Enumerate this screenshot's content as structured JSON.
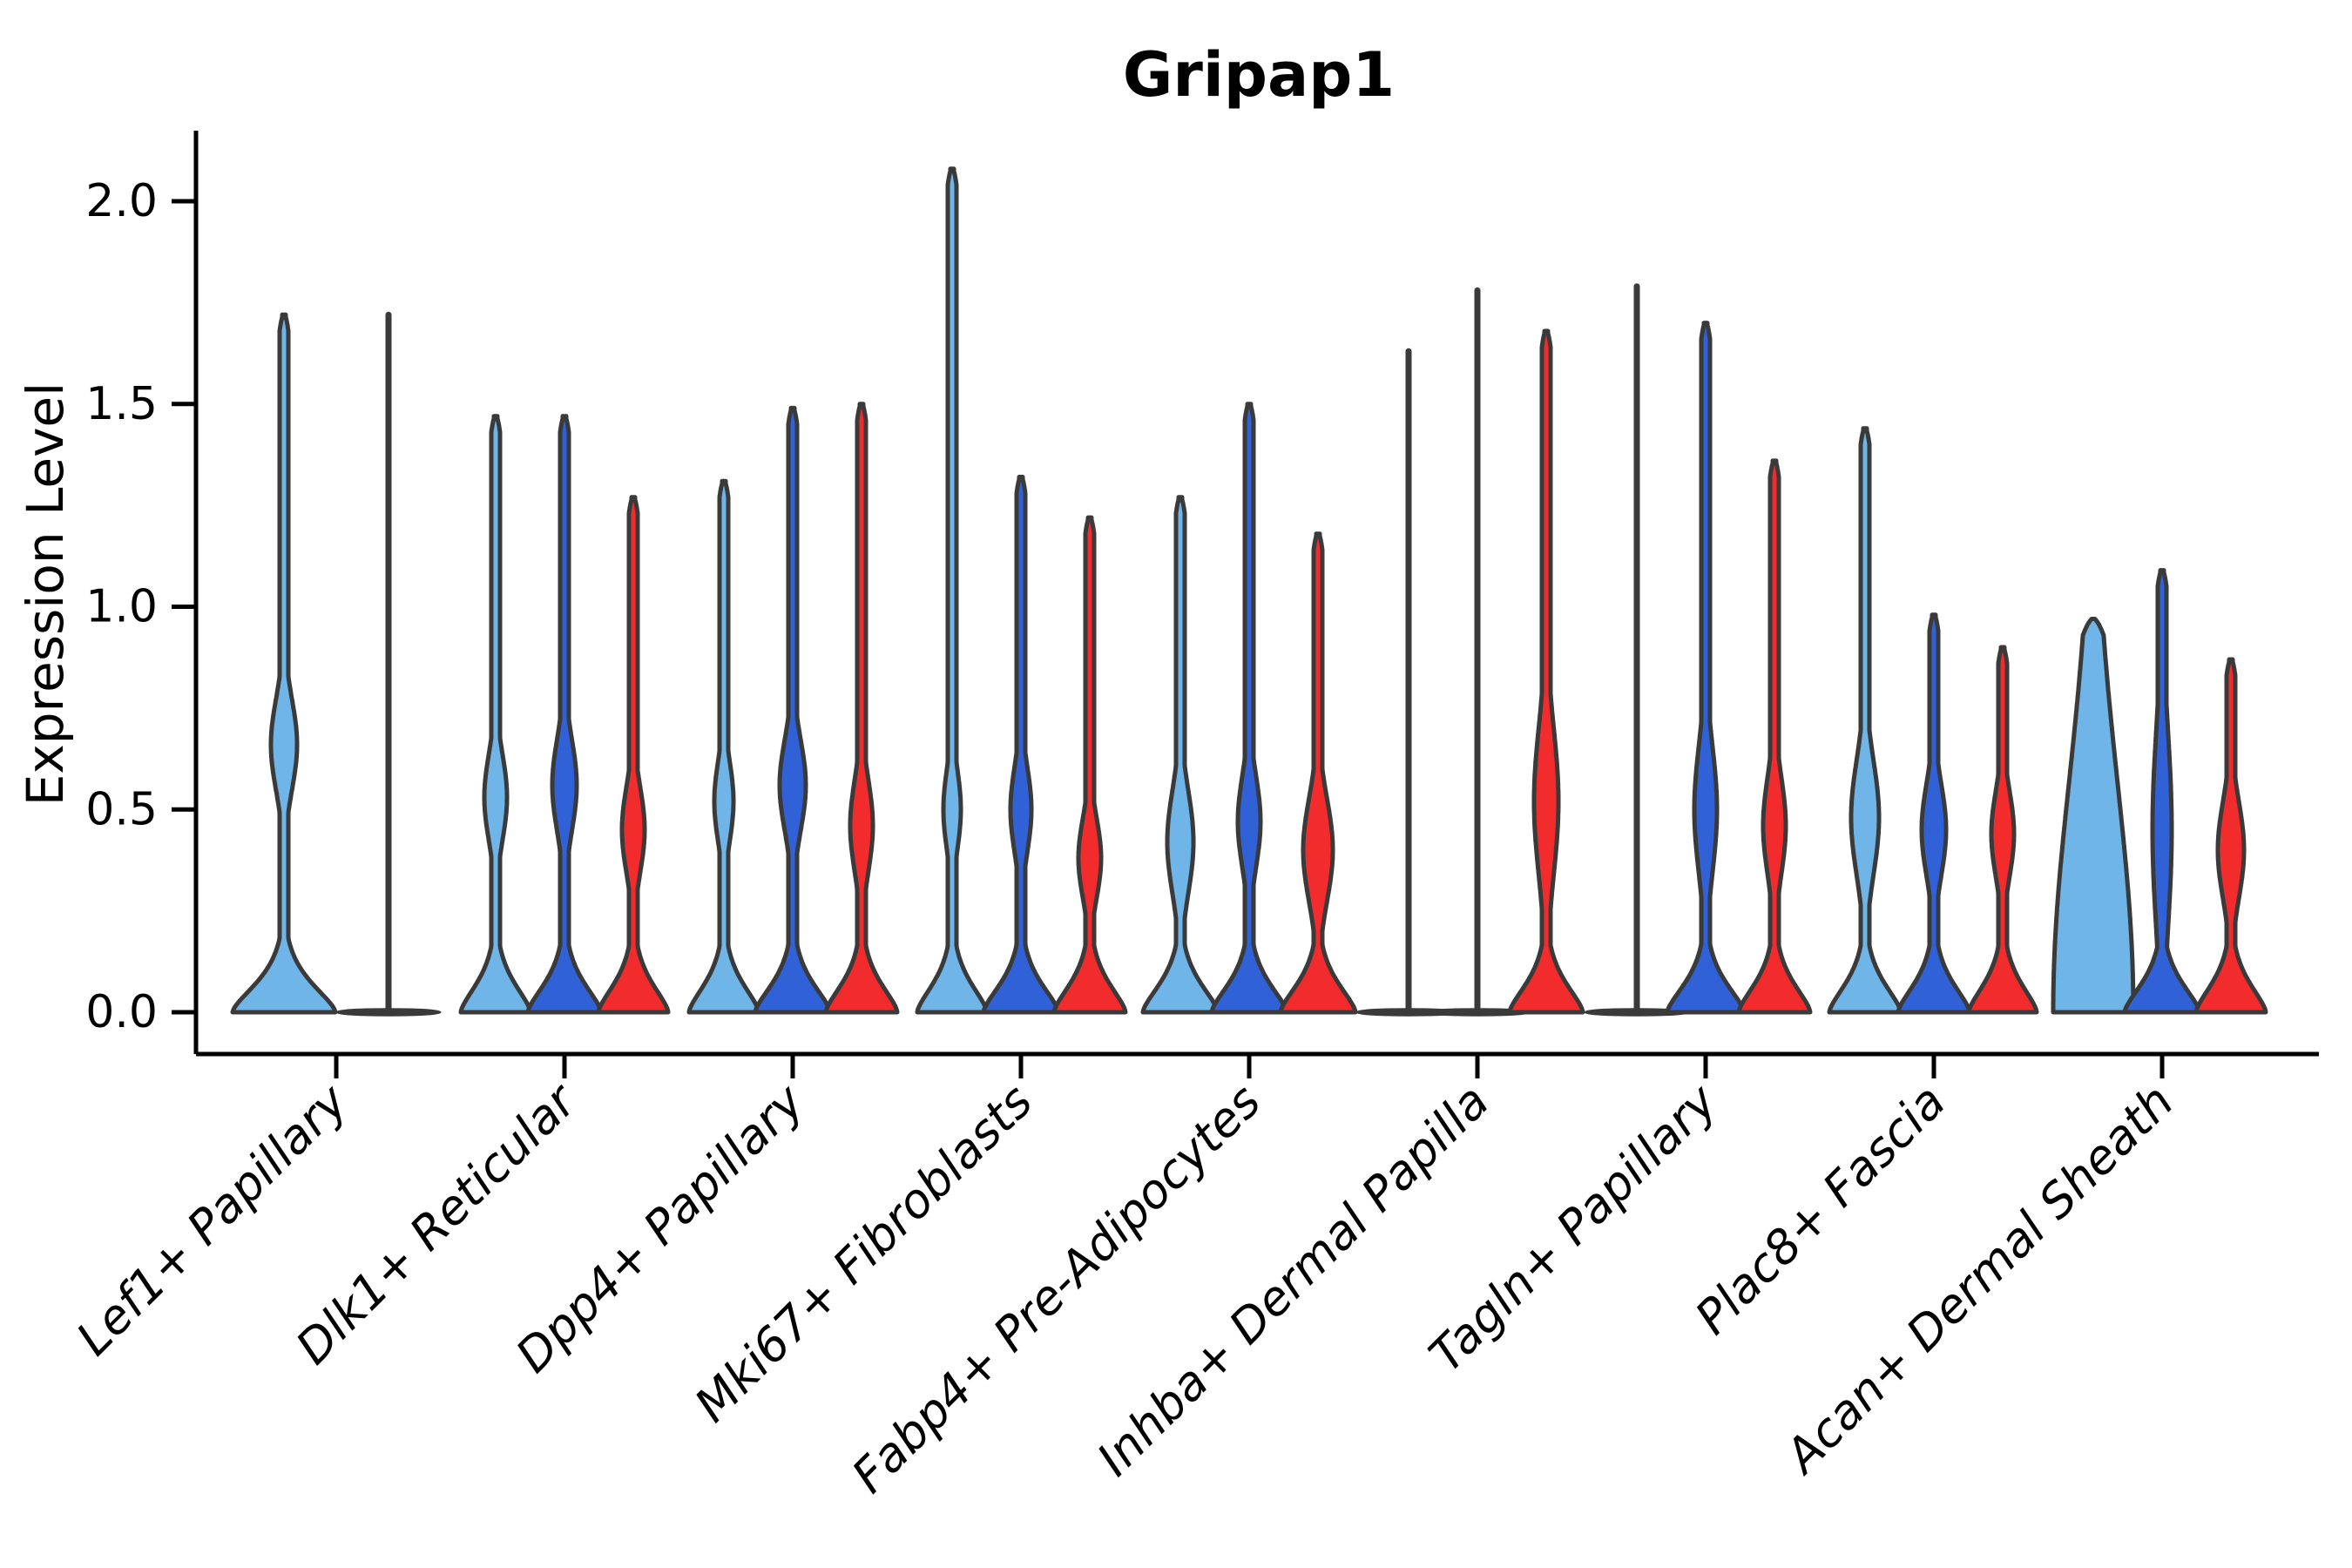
{
  "chart_data": {
    "type": "violin",
    "title": "Gripap1",
    "ylabel": "Expression Level",
    "xlabel": "",
    "ytick_labels": [
      "0.0",
      "0.5",
      "1.0",
      "1.5",
      "2.0"
    ],
    "ytick_values": [
      0.0,
      0.5,
      1.0,
      1.5,
      2.0
    ],
    "ylim": [
      0,
      2.26
    ],
    "grid": false,
    "legend": "none",
    "background": "#ffffff",
    "outline_color": "#3A3A3A",
    "axis_color": "#000000",
    "series_colors": {
      "light_blue": "#6FB5E8",
      "dark_blue": "#3061D6",
      "red": "#F22C2C",
      "indeterminate": "none"
    },
    "categories": [
      "Lef1+ Papillary",
      "Dlk1+ Reticular",
      "Dpp4+ Papillary",
      "Mki67+ Fibroblasts",
      "Fabp4+ Pre-Adipocytes",
      "Inhba+ Dermal Papilla",
      "Tagln+ Papillary",
      "Plac8+ Fascia",
      "Acan+ Dermal Sheath"
    ],
    "groups": [
      {
        "category": "Lef1+ Papillary",
        "violins": [
          {
            "series": "light_blue",
            "style": "normal",
            "max": 1.72,
            "offset": -60,
            "base_hw": 59,
            "bulge_center": 0.66,
            "bulge_hw": 15,
            "bulge_sd": 0.16
          },
          {
            "series": "indeterminate",
            "style": "line",
            "max": 1.72,
            "offset": 60,
            "base_hw": 59
          }
        ]
      },
      {
        "category": "Dlk1+ Reticular",
        "violins": [
          {
            "series": "light_blue",
            "style": "normal",
            "max": 1.47,
            "offset": -79,
            "base_hw": 40,
            "bulge_center": 0.53,
            "bulge_hw": 13,
            "bulge_sd": 0.15
          },
          {
            "series": "dark_blue",
            "style": "normal",
            "max": 1.47,
            "offset": 0,
            "base_hw": 42,
            "bulge_center": 0.56,
            "bulge_hw": 14,
            "bulge_sd": 0.16
          },
          {
            "series": "red",
            "style": "normal",
            "max": 1.27,
            "offset": 79,
            "base_hw": 40,
            "bulge_center": 0.45,
            "bulge_hw": 13,
            "bulge_sd": 0.15
          }
        ]
      },
      {
        "category": "Dpp4+ Papillary",
        "violins": [
          {
            "series": "light_blue",
            "style": "normal",
            "max": 1.31,
            "offset": -79,
            "base_hw": 40,
            "bulge_center": 0.52,
            "bulge_hw": 11,
            "bulge_sd": 0.14
          },
          {
            "series": "dark_blue",
            "style": "normal",
            "max": 1.49,
            "offset": 0,
            "base_hw": 43,
            "bulge_center": 0.56,
            "bulge_hw": 15,
            "bulge_sd": 0.16
          },
          {
            "series": "red",
            "style": "normal",
            "max": 1.5,
            "offset": 79,
            "base_hw": 41,
            "bulge_center": 0.46,
            "bulge_hw": 13,
            "bulge_sd": 0.16
          }
        ]
      },
      {
        "category": "Mki67+ Fibroblasts",
        "violins": [
          {
            "series": "light_blue",
            "style": "normal",
            "max": 2.08,
            "offset": -79,
            "base_hw": 40,
            "bulge_center": 0.5,
            "bulge_hw": 10,
            "bulge_sd": 0.14
          },
          {
            "series": "dark_blue",
            "style": "normal",
            "max": 1.32,
            "offset": 0,
            "base_hw": 43,
            "bulge_center": 0.5,
            "bulge_hw": 12,
            "bulge_sd": 0.15
          },
          {
            "series": "red",
            "style": "normal",
            "max": 1.22,
            "offset": 79,
            "base_hw": 41,
            "bulge_center": 0.38,
            "bulge_hw": 13,
            "bulge_sd": 0.14
          }
        ]
      },
      {
        "category": "Fabp4+ Pre-Adipocytes",
        "violins": [
          {
            "series": "light_blue",
            "style": "normal",
            "max": 1.27,
            "offset": -79,
            "base_hw": 43,
            "bulge_center": 0.42,
            "bulge_hw": 15,
            "bulge_sd": 0.18
          },
          {
            "series": "dark_blue",
            "style": "normal",
            "max": 1.5,
            "offset": 0,
            "base_hw": 43,
            "bulge_center": 0.47,
            "bulge_hw": 13,
            "bulge_sd": 0.16
          },
          {
            "series": "red",
            "style": "normal",
            "max": 1.18,
            "offset": 79,
            "base_hw": 43,
            "bulge_center": 0.4,
            "bulge_hw": 17,
            "bulge_sd": 0.18
          }
        ]
      },
      {
        "category": "Inhba+ Dermal Papilla",
        "violins": [
          {
            "series": "light_blue",
            "style": "line",
            "max": 1.63,
            "offset": -79,
            "base_hw": 59
          },
          {
            "series": "dark_blue",
            "style": "line",
            "max": 1.78,
            "offset": 0,
            "base_hw": 59
          },
          {
            "series": "red",
            "style": "normal",
            "max": 1.68,
            "offset": 79,
            "base_hw": 42,
            "bulge_center": 0.52,
            "bulge_hw": 14,
            "bulge_sd": 0.26
          }
        ]
      },
      {
        "category": "Tagln+ Papillary",
        "violins": [
          {
            "series": "light_blue",
            "style": "line",
            "max": 1.79,
            "offset": -79,
            "base_hw": 59
          },
          {
            "series": "dark_blue",
            "style": "normal",
            "max": 1.7,
            "offset": 0,
            "base_hw": 44,
            "bulge_center": 0.5,
            "bulge_hw": 13,
            "bulge_sd": 0.22
          },
          {
            "series": "red",
            "style": "normal",
            "max": 1.36,
            "offset": 79,
            "base_hw": 41,
            "bulge_center": 0.46,
            "bulge_hw": 13,
            "bulge_sd": 0.17
          }
        ]
      },
      {
        "category": "Plac8+ Fascia",
        "violins": [
          {
            "series": "light_blue",
            "style": "normal",
            "max": 1.44,
            "offset": -79,
            "base_hw": 41,
            "bulge_center": 0.48,
            "bulge_hw": 16,
            "bulge_sd": 0.2
          },
          {
            "series": "dark_blue",
            "style": "normal",
            "max": 0.98,
            "offset": 0,
            "base_hw": 41,
            "bulge_center": 0.45,
            "bulge_hw": 14,
            "bulge_sd": 0.16
          },
          {
            "series": "red",
            "style": "normal",
            "max": 0.9,
            "offset": 79,
            "base_hw": 39,
            "bulge_center": 0.44,
            "bulge_hw": 13,
            "bulge_sd": 0.15
          }
        ]
      },
      {
        "category": "Acan+ Dermal Sheath",
        "violins": [
          {
            "series": "light_blue",
            "style": "normal",
            "max": 0.97,
            "offset": -79,
            "base_hw": 46,
            "base_sd": 0.8,
            "base_pow": 2,
            "bulge_center": 0.6,
            "bulge_hw": 0,
            "bulge_sd": 0.3
          },
          {
            "series": "dark_blue",
            "style": "normal",
            "max": 1.09,
            "offset": 0,
            "base_hw": 43,
            "bulge_center": 0.45,
            "bulge_hw": 11,
            "bulge_sd": 0.35
          },
          {
            "series": "red",
            "style": "normal",
            "max": 0.87,
            "offset": 79,
            "base_hw": 40,
            "bulge_center": 0.4,
            "bulge_hw": 15,
            "bulge_sd": 0.17
          }
        ]
      }
    ]
  }
}
